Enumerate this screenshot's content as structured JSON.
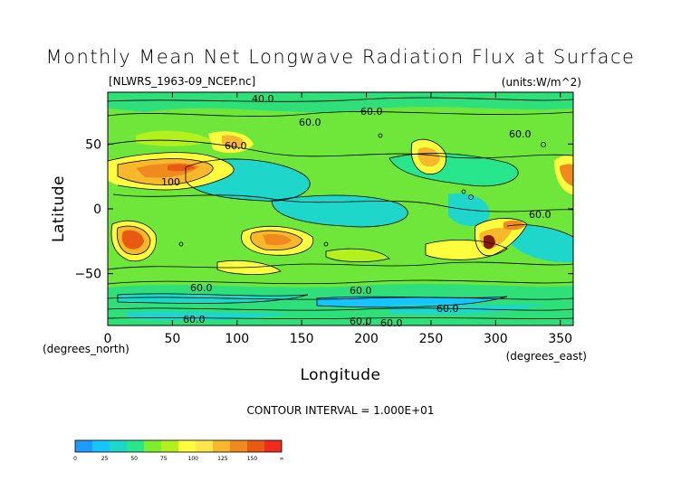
{
  "chart_data": {
    "type": "heatmap",
    "title": "Monthly Mean Net Longwave Radiation Flux at Surface",
    "file_label": "[NLWRS_1963-09_NCEP.nc]",
    "units_label": "(units:W/m^2)",
    "xlabel": "Longitude",
    "ylabel": "Latitude",
    "x_unit_label": "(degrees_east)",
    "y_unit_label": "(degrees_north)",
    "xlim": [
      0,
      360
    ],
    "ylim": [
      -90,
      90
    ],
    "x_ticks": [
      0,
      50,
      100,
      150,
      200,
      250,
      300,
      350
    ],
    "y_ticks": [
      50,
      0,
      -50
    ],
    "contour_interval_text": "CONTOUR INTERVAL = 1.000E+01",
    "contour_labels": [
      "40.0",
      "60.0",
      "60.0",
      "60.0",
      "60.0",
      "100",
      "60.0",
      "60.0",
      "60.0",
      "60.0",
      "60.0",
      "60.0",
      "60.0"
    ],
    "colorbar": {
      "ticks": [
        "0",
        "25",
        "50",
        "75",
        "100",
        "125",
        "150",
        "∞"
      ],
      "colors": [
        "#1e9bff",
        "#16c4ff",
        "#1ed6c9",
        "#28e68c",
        "#7ded2d",
        "#b3f01e",
        "#ffff3d",
        "#ffe64a",
        "#f7b82c",
        "#ef8a1f",
        "#e85a12",
        "#f02a1e"
      ]
    }
  }
}
